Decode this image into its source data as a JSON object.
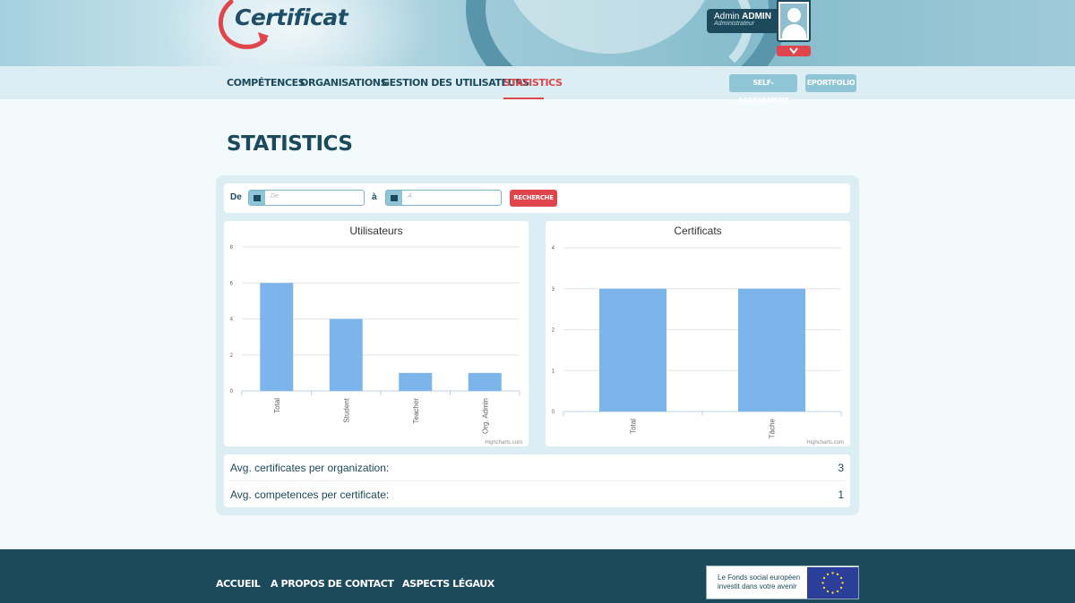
{
  "brand": {
    "name": "Certificat"
  },
  "user": {
    "first": "Admin",
    "last": "ADMIN",
    "role": "Administrateur"
  },
  "nav": {
    "items": [
      {
        "label": "Compétences"
      },
      {
        "label": "Organisations"
      },
      {
        "label": "Gestion des utilisateurs"
      },
      {
        "label": "Statistics"
      }
    ],
    "active": "Statistics",
    "buttons": [
      {
        "label": "SELF-ASSESSMENT"
      },
      {
        "label": "EPORTFOLIO"
      }
    ]
  },
  "page": {
    "title": "STATISTICS"
  },
  "filter": {
    "from_label": "De",
    "from_placeholder": "De",
    "to_label": "à",
    "to_placeholder": "À",
    "search_label": "RECHERCHE"
  },
  "chart_data": [
    {
      "type": "bar",
      "title": "Utilisateurs",
      "categories": [
        "Total",
        "Student",
        "Teacher",
        "Org. Admin"
      ],
      "values": [
        6,
        4,
        1,
        1
      ],
      "ylim": [
        0,
        8
      ],
      "yticks": [
        0,
        2,
        4,
        6,
        8
      ],
      "credit": "Highcharts.com",
      "color": "#7cb5ec",
      "grid": true,
      "legend": false
    },
    {
      "type": "bar",
      "title": "Certificats",
      "categories": [
        "Total",
        "Tâche"
      ],
      "values": [
        3,
        3
      ],
      "ylim": [
        0,
        4
      ],
      "yticks": [
        0,
        1,
        2,
        3,
        4
      ],
      "credit": "Highcharts.com",
      "color": "#7cb5ec",
      "grid": true,
      "legend": false
    }
  ],
  "stats": [
    {
      "label": "Avg. certificates per organization:",
      "value": "3"
    },
    {
      "label": "Avg. competences per certificate:",
      "value": "1"
    }
  ],
  "footer": {
    "links": [
      {
        "label": "Accueil"
      },
      {
        "label": "A propos de"
      },
      {
        "label": "Contact"
      },
      {
        "label": "Aspects légaux"
      }
    ],
    "eu_text": "Le Fonds social européen investit dans votre avenir"
  },
  "colors": {
    "primary": "#1c4a5c",
    "accent": "#e0454c",
    "bar": "#7cb5ec",
    "light": "#dcedf3"
  }
}
